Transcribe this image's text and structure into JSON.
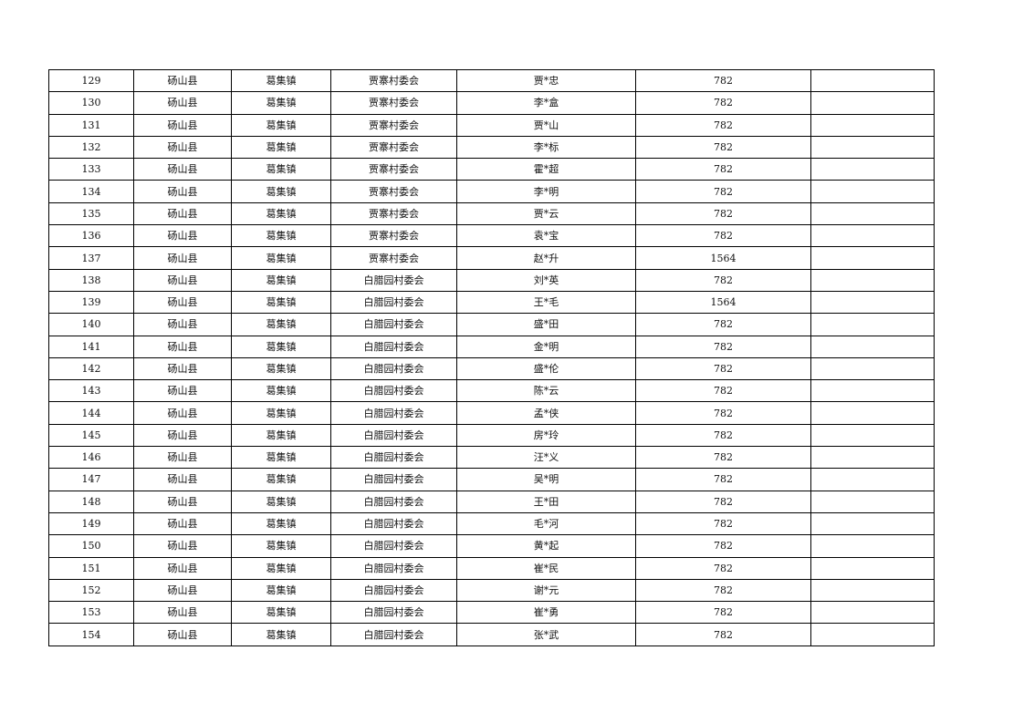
{
  "table": {
    "rows": [
      [
        "129",
        "砀山县",
        "葛集镇",
        "贾寨村委会",
        "贾*忠",
        "782",
        ""
      ],
      [
        "130",
        "砀山县",
        "葛集镇",
        "贾寨村委会",
        "李*盒",
        "782",
        ""
      ],
      [
        "131",
        "砀山县",
        "葛集镇",
        "贾寨村委会",
        "贾*山",
        "782",
        ""
      ],
      [
        "132",
        "砀山县",
        "葛集镇",
        "贾寨村委会",
        "李*标",
        "782",
        ""
      ],
      [
        "133",
        "砀山县",
        "葛集镇",
        "贾寨村委会",
        "霍*超",
        "782",
        ""
      ],
      [
        "134",
        "砀山县",
        "葛集镇",
        "贾寨村委会",
        "李*明",
        "782",
        ""
      ],
      [
        "135",
        "砀山县",
        "葛集镇",
        "贾寨村委会",
        "贾*云",
        "782",
        ""
      ],
      [
        "136",
        "砀山县",
        "葛集镇",
        "贾寨村委会",
        "袁*宝",
        "782",
        ""
      ],
      [
        "137",
        "砀山县",
        "葛集镇",
        "贾寨村委会",
        "赵*升",
        "1564",
        ""
      ],
      [
        "138",
        "砀山县",
        "葛集镇",
        "白腊园村委会",
        "刘*英",
        "782",
        ""
      ],
      [
        "139",
        "砀山县",
        "葛集镇",
        "白腊园村委会",
        "王*毛",
        "1564",
        ""
      ],
      [
        "140",
        "砀山县",
        "葛集镇",
        "白腊园村委会",
        "盛*田",
        "782",
        ""
      ],
      [
        "141",
        "砀山县",
        "葛集镇",
        "白腊园村委会",
        "金*明",
        "782",
        ""
      ],
      [
        "142",
        "砀山县",
        "葛集镇",
        "白腊园村委会",
        "盛*伦",
        "782",
        ""
      ],
      [
        "143",
        "砀山县",
        "葛集镇",
        "白腊园村委会",
        "陈*云",
        "782",
        ""
      ],
      [
        "144",
        "砀山县",
        "葛集镇",
        "白腊园村委会",
        "孟*侠",
        "782",
        ""
      ],
      [
        "145",
        "砀山县",
        "葛集镇",
        "白腊园村委会",
        "房*玲",
        "782",
        ""
      ],
      [
        "146",
        "砀山县",
        "葛集镇",
        "白腊园村委会",
        "汪*义",
        "782",
        ""
      ],
      [
        "147",
        "砀山县",
        "葛集镇",
        "白腊园村委会",
        "吴*明",
        "782",
        ""
      ],
      [
        "148",
        "砀山县",
        "葛集镇",
        "白腊园村委会",
        "王*田",
        "782",
        ""
      ],
      [
        "149",
        "砀山县",
        "葛集镇",
        "白腊园村委会",
        "毛*河",
        "782",
        ""
      ],
      [
        "150",
        "砀山县",
        "葛集镇",
        "白腊园村委会",
        "黄*起",
        "782",
        ""
      ],
      [
        "151",
        "砀山县",
        "葛集镇",
        "白腊园村委会",
        "崔*民",
        "782",
        ""
      ],
      [
        "152",
        "砀山县",
        "葛集镇",
        "白腊园村委会",
        "谢*元",
        "782",
        ""
      ],
      [
        "153",
        "砀山县",
        "葛集镇",
        "白腊园村委会",
        "崔*勇",
        "782",
        ""
      ],
      [
        "154",
        "砀山县",
        "葛集镇",
        "白腊园村委会",
        "张*武",
        "782",
        ""
      ]
    ]
  }
}
